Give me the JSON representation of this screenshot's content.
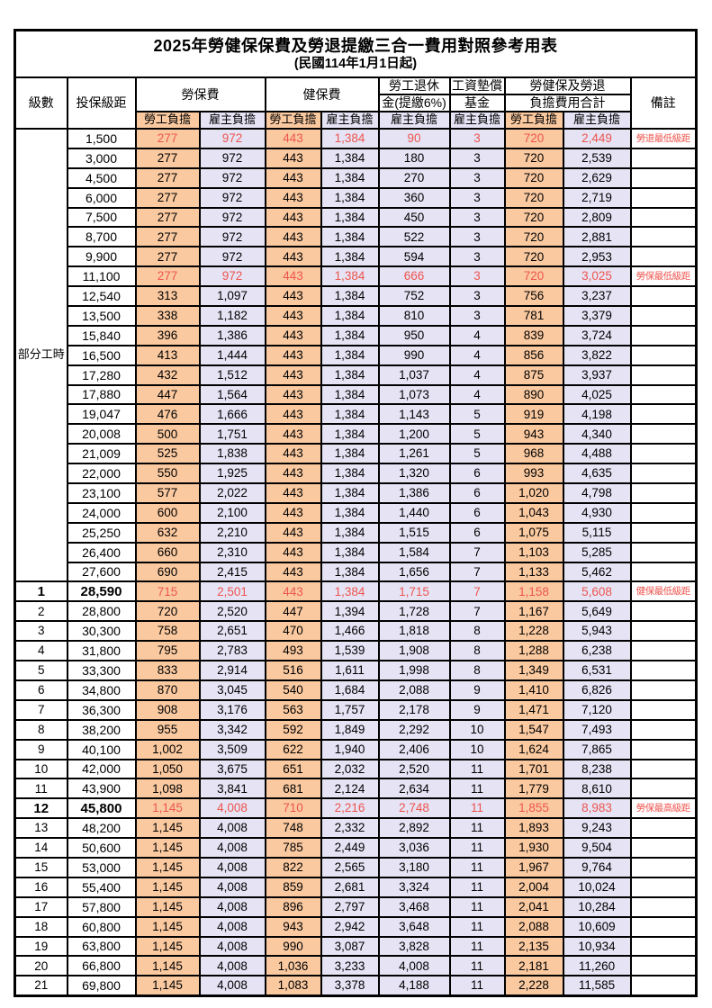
{
  "title": "2025年勞健保保費及勞退提繳三合一費用對照參考用表",
  "subtitle": "(民國114年1月1日起)",
  "header": {
    "level": "級數",
    "bracket": "投保級距",
    "labor_insurance": "勞保費",
    "health_insurance": "健保費",
    "pension_line1": "勞工退休",
    "pension_line2": "金(提繳6%)",
    "wage_fund_line1": "工資墊償",
    "wage_fund_line2": "基金",
    "total_line1": "勞健保及勞退",
    "total_line2": "負擔費用合計",
    "remarks": "備註",
    "employee": "勞工負擔",
    "employer": "雇主負擔"
  },
  "part_time_label": "部分工時",
  "part_time_rowspan": 23,
  "colors": {
    "employee_bg": "#fac9a0",
    "employer_bg": "#e5e3f4",
    "highlight_text": "#ee554f",
    "grid": "#000000",
    "text": "#000000"
  },
  "rows": [
    {
      "bracket": "1,500",
      "v": [
        "277",
        "972",
        "443",
        "1,384",
        "90",
        "3",
        "720",
        "2,449"
      ],
      "note": "勞退最低級距",
      "hl": true
    },
    {
      "bracket": "3,000",
      "v": [
        "277",
        "972",
        "443",
        "1,384",
        "180",
        "3",
        "720",
        "2,539"
      ],
      "note": ""
    },
    {
      "bracket": "4,500",
      "v": [
        "277",
        "972",
        "443",
        "1,384",
        "270",
        "3",
        "720",
        "2,629"
      ],
      "note": ""
    },
    {
      "bracket": "6,000",
      "v": [
        "277",
        "972",
        "443",
        "1,384",
        "360",
        "3",
        "720",
        "2,719"
      ],
      "note": ""
    },
    {
      "bracket": "7,500",
      "v": [
        "277",
        "972",
        "443",
        "1,384",
        "450",
        "3",
        "720",
        "2,809"
      ],
      "note": ""
    },
    {
      "bracket": "8,700",
      "v": [
        "277",
        "972",
        "443",
        "1,384",
        "522",
        "3",
        "720",
        "2,881"
      ],
      "note": ""
    },
    {
      "bracket": "9,900",
      "v": [
        "277",
        "972",
        "443",
        "1,384",
        "594",
        "3",
        "720",
        "2,953"
      ],
      "note": ""
    },
    {
      "bracket": "11,100",
      "v": [
        "277",
        "972",
        "443",
        "1,384",
        "666",
        "3",
        "720",
        "3,025"
      ],
      "note": "勞保最低級距",
      "hl": true
    },
    {
      "bracket": "12,540",
      "v": [
        "313",
        "1,097",
        "443",
        "1,384",
        "752",
        "3",
        "756",
        "3,237"
      ],
      "note": ""
    },
    {
      "bracket": "13,500",
      "v": [
        "338",
        "1,182",
        "443",
        "1,384",
        "810",
        "3",
        "781",
        "3,379"
      ],
      "note": ""
    },
    {
      "bracket": "15,840",
      "v": [
        "396",
        "1,386",
        "443",
        "1,384",
        "950",
        "4",
        "839",
        "3,724"
      ],
      "note": ""
    },
    {
      "bracket": "16,500",
      "v": [
        "413",
        "1,444",
        "443",
        "1,384",
        "990",
        "4",
        "856",
        "3,822"
      ],
      "note": ""
    },
    {
      "bracket": "17,280",
      "v": [
        "432",
        "1,512",
        "443",
        "1,384",
        "1,037",
        "4",
        "875",
        "3,937"
      ],
      "note": ""
    },
    {
      "bracket": "17,880",
      "v": [
        "447",
        "1,564",
        "443",
        "1,384",
        "1,073",
        "4",
        "890",
        "4,025"
      ],
      "note": ""
    },
    {
      "bracket": "19,047",
      "v": [
        "476",
        "1,666",
        "443",
        "1,384",
        "1,143",
        "5",
        "919",
        "4,198"
      ],
      "note": ""
    },
    {
      "bracket": "20,008",
      "v": [
        "500",
        "1,751",
        "443",
        "1,384",
        "1,200",
        "5",
        "943",
        "4,340"
      ],
      "note": ""
    },
    {
      "bracket": "21,009",
      "v": [
        "525",
        "1,838",
        "443",
        "1,384",
        "1,261",
        "5",
        "968",
        "4,488"
      ],
      "note": ""
    },
    {
      "bracket": "22,000",
      "v": [
        "550",
        "1,925",
        "443",
        "1,384",
        "1,320",
        "6",
        "993",
        "4,635"
      ],
      "note": ""
    },
    {
      "bracket": "23,100",
      "v": [
        "577",
        "2,022",
        "443",
        "1,384",
        "1,386",
        "6",
        "1,020",
        "4,798"
      ],
      "note": ""
    },
    {
      "bracket": "24,000",
      "v": [
        "600",
        "2,100",
        "443",
        "1,384",
        "1,440",
        "6",
        "1,043",
        "4,930"
      ],
      "note": ""
    },
    {
      "bracket": "25,250",
      "v": [
        "632",
        "2,210",
        "443",
        "1,384",
        "1,515",
        "6",
        "1,075",
        "5,115"
      ],
      "note": ""
    },
    {
      "bracket": "26,400",
      "v": [
        "660",
        "2,310",
        "443",
        "1,384",
        "1,584",
        "7",
        "1,103",
        "5,285"
      ],
      "note": ""
    },
    {
      "bracket": "27,600",
      "v": [
        "690",
        "2,415",
        "443",
        "1,384",
        "1,656",
        "7",
        "1,133",
        "5,462"
      ],
      "note": ""
    },
    {
      "lv": "1",
      "bracket": "28,590",
      "v": [
        "715",
        "2,501",
        "443",
        "1,384",
        "1,715",
        "7",
        "1,158",
        "5,608"
      ],
      "note": "健保最低級距",
      "hl": true,
      "em": true
    },
    {
      "lv": "2",
      "bracket": "28,800",
      "v": [
        "720",
        "2,520",
        "447",
        "1,394",
        "1,728",
        "7",
        "1,167",
        "5,649"
      ],
      "note": ""
    },
    {
      "lv": "3",
      "bracket": "30,300",
      "v": [
        "758",
        "2,651",
        "470",
        "1,466",
        "1,818",
        "8",
        "1,228",
        "5,943"
      ],
      "note": ""
    },
    {
      "lv": "4",
      "bracket": "31,800",
      "v": [
        "795",
        "2,783",
        "493",
        "1,539",
        "1,908",
        "8",
        "1,288",
        "6,238"
      ],
      "note": ""
    },
    {
      "lv": "5",
      "bracket": "33,300",
      "v": [
        "833",
        "2,914",
        "516",
        "1,611",
        "1,998",
        "8",
        "1,349",
        "6,531"
      ],
      "note": ""
    },
    {
      "lv": "6",
      "bracket": "34,800",
      "v": [
        "870",
        "3,045",
        "540",
        "1,684",
        "2,088",
        "9",
        "1,410",
        "6,826"
      ],
      "note": ""
    },
    {
      "lv": "7",
      "bracket": "36,300",
      "v": [
        "908",
        "3,176",
        "563",
        "1,757",
        "2,178",
        "9",
        "1,471",
        "7,120"
      ],
      "note": ""
    },
    {
      "lv": "8",
      "bracket": "38,200",
      "v": [
        "955",
        "3,342",
        "592",
        "1,849",
        "2,292",
        "10",
        "1,547",
        "7,493"
      ],
      "note": ""
    },
    {
      "lv": "9",
      "bracket": "40,100",
      "v": [
        "1,002",
        "3,509",
        "622",
        "1,940",
        "2,406",
        "10",
        "1,624",
        "7,865"
      ],
      "note": ""
    },
    {
      "lv": "10",
      "bracket": "42,000",
      "v": [
        "1,050",
        "3,675",
        "651",
        "2,032",
        "2,520",
        "11",
        "1,701",
        "8,238"
      ],
      "note": ""
    },
    {
      "lv": "11",
      "bracket": "43,900",
      "v": [
        "1,098",
        "3,841",
        "681",
        "2,124",
        "2,634",
        "11",
        "1,779",
        "8,610"
      ],
      "note": ""
    },
    {
      "lv": "12",
      "bracket": "45,800",
      "v": [
        "1,145",
        "4,008",
        "710",
        "2,216",
        "2,748",
        "11",
        "1,855",
        "8,983"
      ],
      "note": "勞保最高級距",
      "hl": true,
      "em": true
    },
    {
      "lv": "13",
      "bracket": "48,200",
      "v": [
        "1,145",
        "4,008",
        "748",
        "2,332",
        "2,892",
        "11",
        "1,893",
        "9,243"
      ],
      "note": ""
    },
    {
      "lv": "14",
      "bracket": "50,600",
      "v": [
        "1,145",
        "4,008",
        "785",
        "2,449",
        "3,036",
        "11",
        "1,930",
        "9,504"
      ],
      "note": ""
    },
    {
      "lv": "15",
      "bracket": "53,000",
      "v": [
        "1,145",
        "4,008",
        "822",
        "2,565",
        "3,180",
        "11",
        "1,967",
        "9,764"
      ],
      "note": ""
    },
    {
      "lv": "16",
      "bracket": "55,400",
      "v": [
        "1,145",
        "4,008",
        "859",
        "2,681",
        "3,324",
        "11",
        "2,004",
        "10,024"
      ],
      "note": ""
    },
    {
      "lv": "17",
      "bracket": "57,800",
      "v": [
        "1,145",
        "4,008",
        "896",
        "2,797",
        "3,468",
        "11",
        "2,041",
        "10,284"
      ],
      "note": ""
    },
    {
      "lv": "18",
      "bracket": "60,800",
      "v": [
        "1,145",
        "4,008",
        "943",
        "2,942",
        "3,648",
        "11",
        "2,088",
        "10,609"
      ],
      "note": ""
    },
    {
      "lv": "19",
      "bracket": "63,800",
      "v": [
        "1,145",
        "4,008",
        "990",
        "3,087",
        "3,828",
        "11",
        "2,135",
        "10,934"
      ],
      "note": ""
    },
    {
      "lv": "20",
      "bracket": "66,800",
      "v": [
        "1,145",
        "4,008",
        "1,036",
        "3,233",
        "4,008",
        "11",
        "2,181",
        "11,260"
      ],
      "note": ""
    },
    {
      "lv": "21",
      "bracket": "69,800",
      "v": [
        "1,145",
        "4,008",
        "1,083",
        "3,378",
        "4,188",
        "11",
        "2,228",
        "11,585"
      ],
      "note": ""
    }
  ]
}
